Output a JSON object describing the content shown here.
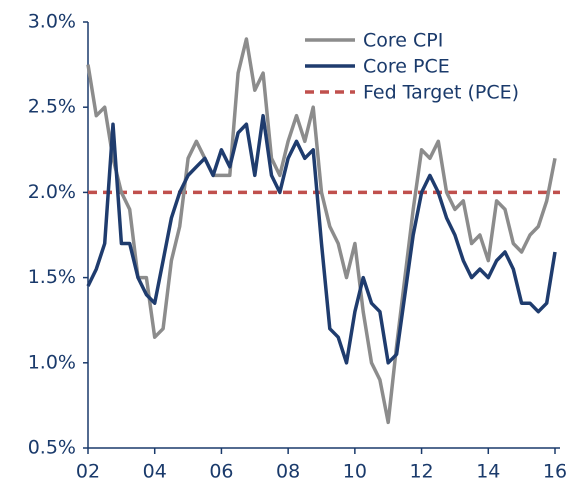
{
  "chart_data": {
    "type": "line",
    "x": [
      2,
      2.25,
      2.5,
      2.75,
      3,
      3.25,
      3.5,
      3.75,
      4,
      4.25,
      4.5,
      4.75,
      5,
      5.25,
      5.5,
      5.75,
      6,
      6.25,
      6.5,
      6.75,
      7,
      7.25,
      7.5,
      7.75,
      8,
      8.25,
      8.5,
      8.75,
      9,
      9.25,
      9.5,
      9.75,
      10,
      10.25,
      10.5,
      10.75,
      11,
      11.25,
      11.5,
      11.75,
      12,
      12.25,
      12.5,
      12.75,
      13,
      13.25,
      13.5,
      13.75,
      14,
      14.25,
      14.5,
      14.75,
      15,
      15.25,
      15.5,
      15.75,
      16
    ],
    "series": [
      {
        "name": "Core CPI",
        "color": "#8c8c8c",
        "values": [
          2.75,
          2.45,
          2.5,
          2.2,
          2.0,
          1.9,
          1.5,
          1.5,
          1.15,
          1.2,
          1.6,
          1.8,
          2.2,
          2.3,
          2.2,
          2.1,
          2.1,
          2.1,
          2.7,
          2.9,
          2.6,
          2.7,
          2.2,
          2.1,
          2.3,
          2.45,
          2.3,
          2.5,
          2.0,
          1.8,
          1.7,
          1.5,
          1.7,
          1.3,
          1.0,
          0.9,
          0.65,
          1.1,
          1.5,
          1.9,
          2.25,
          2.2,
          2.3,
          2.0,
          1.9,
          1.95,
          1.7,
          1.75,
          1.6,
          1.95,
          1.9,
          1.7,
          1.65,
          1.75,
          1.8,
          1.95,
          2.2
        ]
      },
      {
        "name": "Core PCE",
        "color": "#1f3c6e",
        "values": [
          1.45,
          1.55,
          1.7,
          2.4,
          1.7,
          1.7,
          1.5,
          1.4,
          1.35,
          1.6,
          1.85,
          2.0,
          2.1,
          2.15,
          2.2,
          2.1,
          2.25,
          2.15,
          2.35,
          2.4,
          2.1,
          2.45,
          2.1,
          2.0,
          2.2,
          2.3,
          2.2,
          2.25,
          1.7,
          1.2,
          1.15,
          1.0,
          1.3,
          1.5,
          1.35,
          1.3,
          1.0,
          1.05,
          1.4,
          1.75,
          2.0,
          2.1,
          2.0,
          1.85,
          1.75,
          1.6,
          1.5,
          1.55,
          1.5,
          1.6,
          1.65,
          1.55,
          1.35,
          1.35,
          1.3,
          1.35,
          1.65
        ]
      }
    ],
    "reference_line": {
      "name": "Fed Target (PCE)",
      "value": 2.0,
      "color": "#c0504d",
      "dashed": true
    },
    "xlim": [
      2,
      16
    ],
    "xticks": [
      {
        "value": 2,
        "label": "02"
      },
      {
        "value": 4,
        "label": "04"
      },
      {
        "value": 6,
        "label": "06"
      },
      {
        "value": 8,
        "label": "08"
      },
      {
        "value": 10,
        "label": "10"
      },
      {
        "value": 12,
        "label": "12"
      },
      {
        "value": 14,
        "label": "14"
      },
      {
        "value": 16,
        "label": "16"
      }
    ],
    "ylim": [
      0.5,
      3.0
    ],
    "yticks": [
      {
        "value": 0.5,
        "label": "0.5%"
      },
      {
        "value": 1.0,
        "label": "1.0%"
      },
      {
        "value": 1.5,
        "label": "1.5%"
      },
      {
        "value": 2.0,
        "label": "2.0%"
      },
      {
        "value": 2.5,
        "label": "2.5%"
      },
      {
        "value": 3.0,
        "label": "3.0%"
      }
    ],
    "legend": "upper right"
  }
}
